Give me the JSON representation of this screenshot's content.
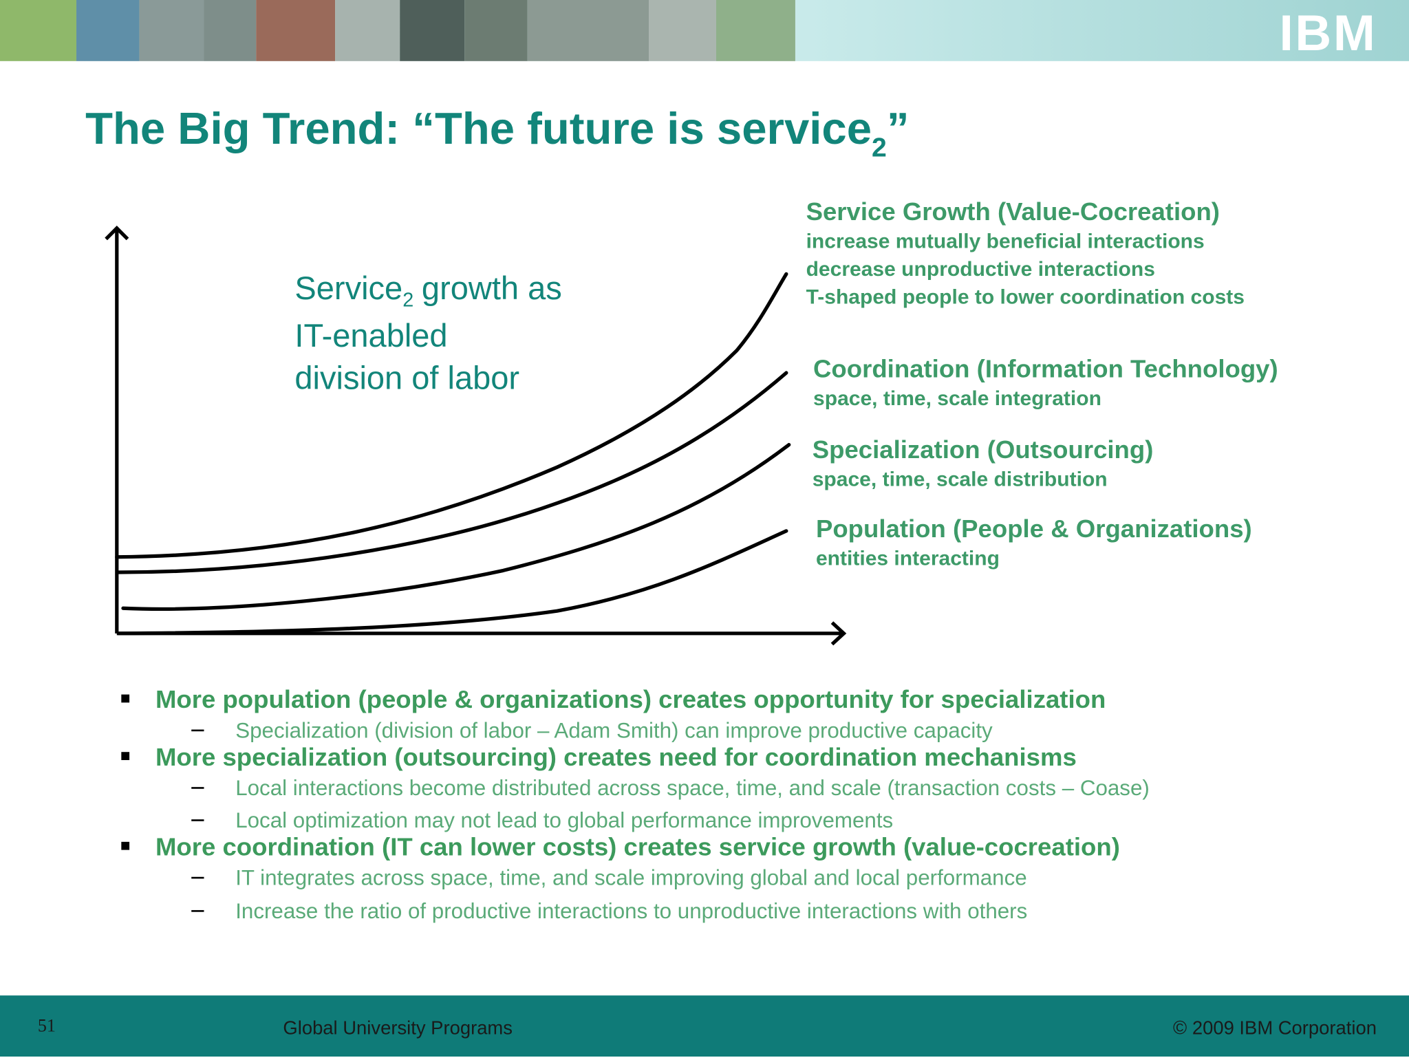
{
  "header": {
    "logo": "IBM"
  },
  "title": {
    "text": "The Big Trend: “The future is service",
    "subscript": "2",
    "end": "”"
  },
  "diagram": {
    "annotation": {
      "word": "Service",
      "subscript": "2",
      "rest": "growth as",
      "line2": "IT-enabled",
      "line3": "division of labor"
    },
    "curves": [
      {
        "title": "Service Growth (Value-Cocreation)",
        "lines": [
          "increase mutually beneficial interactions",
          "decrease unproductive interactions",
          "T-shaped people to lower coordination costs"
        ]
      },
      {
        "title": "Coordination (Information Technology)",
        "lines": [
          "space, time, scale integration"
        ]
      },
      {
        "title": "Specialization (Outsourcing)",
        "lines": [
          "space, time, scale distribution"
        ]
      },
      {
        "title": "Population (People & Organizations)",
        "lines": [
          "entities interacting"
        ]
      }
    ]
  },
  "bullets": [
    {
      "text": "More population (people & organizations) creates opportunity for specialization",
      "subs": [
        "Specialization (division of labor – Adam Smith) can improve productive capacity"
      ]
    },
    {
      "text": "More specialization (outsourcing) creates need for coordination mechanisms",
      "subs": [
        "Local interactions become distributed across space, time, and scale (transaction costs – Coase)",
        "Local optimization may not lead to global performance improvements"
      ]
    },
    {
      "text": "More coordination (IT can lower costs) creates service growth (value-cocreation)",
      "subs": [
        "IT integrates across space, time, and scale improving global and local performance",
        "Increase the ratio of productive interactions to unproductive interactions with others"
      ]
    }
  ],
  "footer": {
    "page": "51",
    "program": "Global University Programs",
    "copyright": "© 2009 IBM Corporation"
  }
}
